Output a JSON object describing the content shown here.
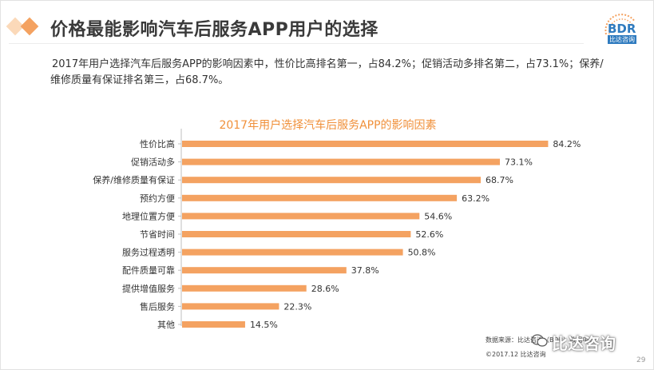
{
  "header": {
    "title": "价格最能影响汽车后服务APP用户的选择",
    "logo_text": "BDR",
    "logo_sub": "比达咨询"
  },
  "description": {
    "line1": "2017年用户选择汽车后服务APP的影响因素中，性价比高排名第一，占84.2%；促销活动多排名第二，占73.1%；保养/",
    "line2": "维修质量有保证排名第三，占68.7%。"
  },
  "chart_data": {
    "type": "bar",
    "orientation": "horizontal",
    "title": "2017年用户选择汽车后服务APP的影响因素",
    "categories": [
      "性价比高",
      "促销活动多",
      "保养/维修质量有保证",
      "预约方便",
      "地理位置方便",
      "节省时间",
      "服务过程透明",
      "配件质量可靠",
      "提供增值服务",
      "售后服务",
      "其他"
    ],
    "values": [
      84.2,
      73.1,
      68.7,
      63.2,
      54.6,
      52.6,
      50.8,
      37.8,
      28.6,
      22.3,
      14.5
    ],
    "value_labels": [
      "84.2%",
      "73.1%",
      "68.7%",
      "63.2%",
      "54.6%",
      "52.6%",
      "50.8%",
      "37.8%",
      "28.6%",
      "22.3%",
      "14.5%"
    ],
    "unit": "%",
    "xlim": [
      0,
      90
    ],
    "bar_color": "#f4a261",
    "axis_color": "#bfbfbf"
  },
  "footer": {
    "source": "数据来源：比达咨询（BDR）数据中心",
    "copyright": "©2017.12 比达咨询",
    "watermark": "比达咨询",
    "page_number": "29"
  }
}
